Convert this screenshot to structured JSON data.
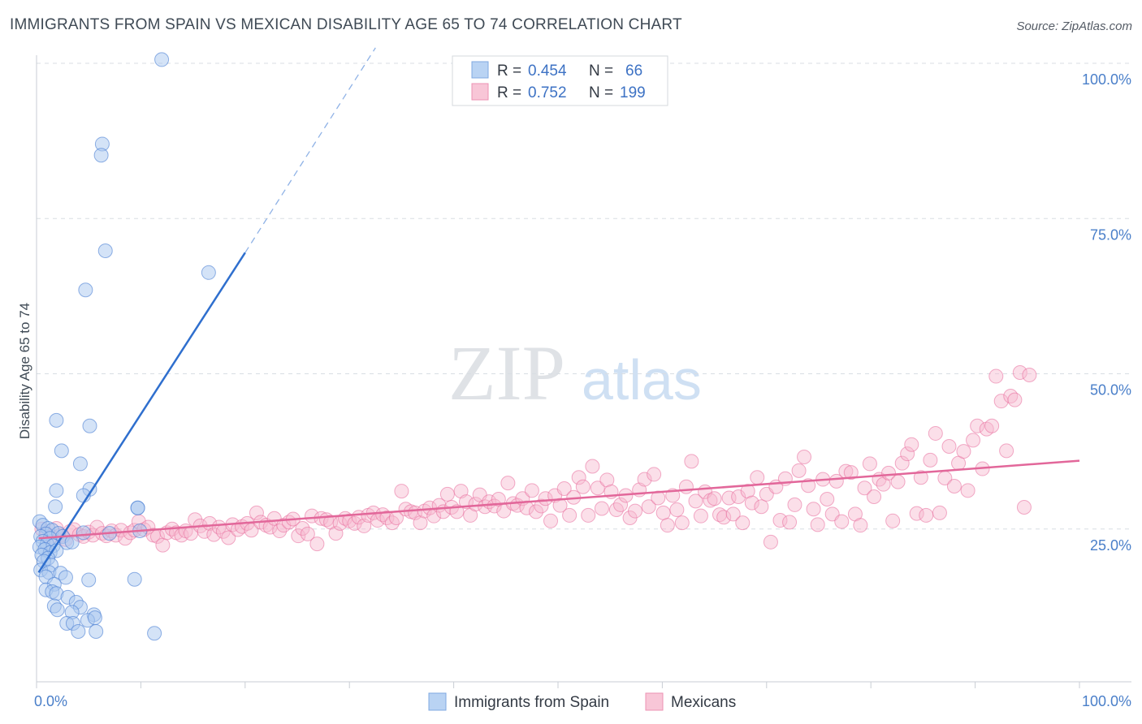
{
  "header": {
    "title": "IMMIGRANTS FROM SPAIN VS MEXICAN DISABILITY AGE 65 TO 74 CORRELATION CHART",
    "source": "Source: ZipAtlas.com"
  },
  "watermark": {
    "zip": "ZIP",
    "atlas": "atlas"
  },
  "colors": {
    "spain": "#4a7fd4",
    "spain_fill": "#a9c8f0",
    "mexicans": "#e8699a",
    "mexicans_fill": "#f6b8cf",
    "tick_label": "#4a7fc9",
    "grid": "#d8dde3"
  },
  "legend": {
    "rows": [
      {
        "r_label": "R =",
        "r_value": "0.454",
        "n_label": "N =",
        "n_value": "66"
      },
      {
        "r_label": "R =",
        "r_value": "0.752",
        "n_label": "N =",
        "n_value": "199"
      }
    ]
  },
  "chart_data": {
    "type": "scatter",
    "title": "IMMIGRANTS FROM SPAIN VS MEXICAN DISABILITY AGE 65 TO 74 CORRELATION CHART",
    "xlabel": "",
    "ylabel": "Disability Age 65 to 74",
    "xlim": [
      0,
      100
    ],
    "ylim": [
      0,
      100
    ],
    "x_tick_labels": [
      "0.0%",
      "100.0%"
    ],
    "y_tick_labels": [
      "25.0%",
      "50.0%",
      "75.0%",
      "100.0%"
    ],
    "y_ticks": [
      25,
      50,
      75,
      100
    ],
    "grid": true,
    "legend_position": "top-center",
    "series": [
      {
        "name": "Immigrants from Spain",
        "r": 0.454,
        "n": 66,
        "trend": {
          "x0": 0.2,
          "y0": 18.0,
          "x1": 20.0,
          "y1": 69.5,
          "dash_to_x": 32.5,
          "dash_to_y": 102.5
        },
        "points": [
          [
            12.0,
            100.6
          ],
          [
            6.3,
            87.0
          ],
          [
            6.2,
            85.2
          ],
          [
            6.6,
            69.8
          ],
          [
            16.5,
            66.3
          ],
          [
            4.7,
            63.5
          ],
          [
            1.9,
            42.5
          ],
          [
            5.1,
            41.6
          ],
          [
            2.4,
            37.6
          ],
          [
            4.2,
            35.5
          ],
          [
            1.9,
            31.2
          ],
          [
            5.1,
            31.4
          ],
          [
            4.5,
            30.4
          ],
          [
            1.8,
            28.6
          ],
          [
            9.7,
            28.4
          ],
          [
            0.3,
            26.2
          ],
          [
            0.6,
            25.6
          ],
          [
            1.1,
            25.1
          ],
          [
            1.5,
            24.8
          ],
          [
            0.9,
            24.2
          ],
          [
            2.1,
            24.3
          ],
          [
            0.4,
            23.8
          ],
          [
            1.3,
            23.5
          ],
          [
            2.5,
            23.8
          ],
          [
            0.6,
            23.0
          ],
          [
            1.0,
            22.6
          ],
          [
            1.6,
            22.3
          ],
          [
            0.3,
            22.1
          ],
          [
            2.9,
            22.8
          ],
          [
            0.8,
            21.7
          ],
          [
            1.3,
            21.2
          ],
          [
            1.9,
            21.5
          ],
          [
            0.5,
            20.8
          ],
          [
            1.1,
            20.3
          ],
          [
            0.7,
            19.8
          ],
          [
            1.4,
            19.2
          ],
          [
            0.4,
            18.4
          ],
          [
            1.2,
            18.0
          ],
          [
            2.3,
            17.9
          ],
          [
            0.9,
            17.3
          ],
          [
            5.0,
            16.8
          ],
          [
            9.4,
            16.9
          ],
          [
            2.8,
            17.2
          ],
          [
            1.7,
            16.1
          ],
          [
            0.9,
            15.2
          ],
          [
            1.5,
            14.9
          ],
          [
            1.9,
            14.6
          ],
          [
            3.0,
            14.0
          ],
          [
            1.7,
            12.6
          ],
          [
            3.8,
            13.2
          ],
          [
            2.0,
            12.0
          ],
          [
            4.2,
            12.4
          ],
          [
            3.4,
            11.6
          ],
          [
            5.5,
            11.2
          ],
          [
            4.9,
            10.3
          ],
          [
            5.6,
            10.7
          ],
          [
            2.9,
            9.8
          ],
          [
            3.5,
            9.8
          ],
          [
            4.0,
            8.5
          ],
          [
            5.7,
            8.5
          ],
          [
            11.3,
            8.2
          ],
          [
            9.9,
            24.7
          ],
          [
            9.7,
            28.4
          ],
          [
            4.5,
            24.4
          ],
          [
            3.4,
            22.9
          ],
          [
            7.0,
            24.3
          ]
        ]
      },
      {
        "name": "Mexicans",
        "r": 0.752,
        "n": 199,
        "trend": {
          "x0": 0.2,
          "y0": 23.5,
          "x1": 100.0,
          "y1": 36.0
        },
        "points": [
          [
            0.5,
            25.0
          ],
          [
            1.0,
            24.2
          ],
          [
            1.4,
            23.8
          ],
          [
            1.9,
            25.1
          ],
          [
            2.3,
            24.0
          ],
          [
            2.8,
            23.3
          ],
          [
            3.2,
            24.6
          ],
          [
            3.6,
            24.9
          ],
          [
            4.1,
            24.1
          ],
          [
            4.5,
            23.8
          ],
          [
            5.0,
            24.5
          ],
          [
            5.4,
            24.0
          ],
          [
            5.8,
            25.3
          ],
          [
            6.3,
            24.3
          ],
          [
            6.7,
            23.9
          ],
          [
            7.2,
            24.7
          ],
          [
            7.6,
            24.0
          ],
          [
            8.1,
            24.8
          ],
          [
            8.5,
            23.5
          ],
          [
            9.0,
            24.4
          ],
          [
            9.4,
            24.8
          ],
          [
            9.8,
            26.2
          ],
          [
            10.3,
            24.9
          ],
          [
            10.7,
            25.3
          ],
          [
            11.2,
            24.0
          ],
          [
            11.6,
            23.8
          ],
          [
            12.1,
            22.4
          ],
          [
            12.5,
            24.4
          ],
          [
            13.0,
            25.0
          ],
          [
            13.4,
            24.4
          ],
          [
            13.9,
            24.0
          ],
          [
            14.3,
            24.7
          ],
          [
            14.8,
            24.3
          ],
          [
            15.2,
            26.5
          ],
          [
            15.7,
            25.5
          ],
          [
            16.1,
            24.6
          ],
          [
            16.6,
            25.9
          ],
          [
            17.0,
            24.1
          ],
          [
            17.5,
            25.3
          ],
          [
            17.9,
            24.6
          ],
          [
            18.4,
            23.6
          ],
          [
            18.8,
            25.7
          ],
          [
            19.3,
            24.9
          ],
          [
            19.7,
            25.4
          ],
          [
            20.2,
            25.9
          ],
          [
            20.6,
            24.8
          ],
          [
            21.1,
            27.6
          ],
          [
            21.5,
            26.1
          ],
          [
            22.0,
            25.6
          ],
          [
            22.4,
            25.3
          ],
          [
            22.8,
            26.7
          ],
          [
            23.3,
            24.7
          ],
          [
            23.7,
            25.6
          ],
          [
            24.2,
            26.1
          ],
          [
            24.6,
            26.6
          ],
          [
            25.1,
            23.9
          ],
          [
            25.5,
            25.1
          ],
          [
            26.0,
            24.2
          ],
          [
            26.4,
            27.1
          ],
          [
            26.9,
            22.6
          ],
          [
            27.3,
            26.7
          ],
          [
            27.8,
            26.5
          ],
          [
            28.2,
            26.1
          ],
          [
            28.7,
            24.3
          ],
          [
            29.1,
            25.9
          ],
          [
            29.6,
            26.7
          ],
          [
            30.0,
            26.3
          ],
          [
            30.5,
            25.9
          ],
          [
            30.9,
            26.9
          ],
          [
            31.4,
            25.5
          ],
          [
            31.8,
            27.2
          ],
          [
            32.3,
            27.6
          ],
          [
            32.7,
            26.4
          ],
          [
            33.2,
            27.3
          ],
          [
            33.6,
            26.8
          ],
          [
            34.1,
            26.0
          ],
          [
            34.5,
            26.8
          ],
          [
            35.0,
            31.1
          ],
          [
            35.4,
            28.2
          ],
          [
            35.9,
            27.8
          ],
          [
            36.3,
            27.6
          ],
          [
            36.8,
            26.0
          ],
          [
            37.2,
            27.9
          ],
          [
            37.7,
            28.4
          ],
          [
            38.1,
            27.1
          ],
          [
            38.6,
            28.8
          ],
          [
            39.0,
            27.8
          ],
          [
            39.4,
            30.6
          ],
          [
            39.8,
            28.5
          ],
          [
            40.3,
            27.8
          ],
          [
            40.7,
            31.1
          ],
          [
            41.2,
            29.4
          ],
          [
            41.6,
            27.2
          ],
          [
            42.1,
            29.0
          ],
          [
            42.5,
            30.5
          ],
          [
            43.0,
            28.6
          ],
          [
            43.4,
            29.4
          ],
          [
            43.9,
            28.7
          ],
          [
            44.3,
            29.8
          ],
          [
            44.8,
            27.9
          ],
          [
            45.2,
            32.4
          ],
          [
            45.7,
            29.1
          ],
          [
            46.1,
            28.8
          ],
          [
            46.6,
            29.9
          ],
          [
            47.0,
            28.4
          ],
          [
            47.5,
            31.2
          ],
          [
            47.9,
            27.8
          ],
          [
            48.4,
            28.7
          ],
          [
            48.8,
            29.9
          ],
          [
            49.3,
            26.3
          ],
          [
            49.7,
            30.4
          ],
          [
            50.2,
            28.8
          ],
          [
            50.6,
            31.5
          ],
          [
            51.1,
            27.2
          ],
          [
            51.5,
            30.1
          ],
          [
            52.0,
            33.3
          ],
          [
            52.4,
            31.8
          ],
          [
            52.9,
            27.2
          ],
          [
            53.3,
            35.1
          ],
          [
            53.8,
            31.6
          ],
          [
            54.2,
            28.3
          ],
          [
            54.7,
            32.9
          ],
          [
            55.1,
            31.0
          ],
          [
            55.6,
            28.1
          ],
          [
            56.0,
            28.9
          ],
          [
            56.5,
            30.4
          ],
          [
            56.9,
            26.8
          ],
          [
            57.4,
            27.9
          ],
          [
            57.8,
            31.3
          ],
          [
            58.3,
            33.0
          ],
          [
            58.7,
            28.6
          ],
          [
            59.2,
            33.8
          ],
          [
            59.6,
            30.0
          ],
          [
            60.1,
            27.6
          ],
          [
            60.5,
            25.6
          ],
          [
            61.0,
            30.4
          ],
          [
            61.4,
            28.1
          ],
          [
            61.9,
            26.0
          ],
          [
            62.3,
            31.8
          ],
          [
            62.8,
            35.9
          ],
          [
            63.2,
            29.5
          ],
          [
            63.7,
            27.1
          ],
          [
            64.1,
            31.0
          ],
          [
            64.6,
            29.6
          ],
          [
            65.0,
            29.9
          ],
          [
            65.5,
            27.3
          ],
          [
            65.9,
            26.9
          ],
          [
            66.4,
            30.0
          ],
          [
            66.8,
            27.4
          ],
          [
            67.3,
            30.2
          ],
          [
            67.7,
            26.0
          ],
          [
            68.2,
            31.1
          ],
          [
            68.6,
            29.2
          ],
          [
            69.1,
            33.3
          ],
          [
            69.5,
            28.6
          ],
          [
            70.0,
            30.6
          ],
          [
            70.4,
            22.9
          ],
          [
            70.9,
            31.8
          ],
          [
            71.3,
            26.4
          ],
          [
            71.8,
            33.1
          ],
          [
            72.2,
            26.1
          ],
          [
            72.7,
            28.9
          ],
          [
            73.1,
            34.4
          ],
          [
            73.6,
            36.6
          ],
          [
            74.0,
            32.0
          ],
          [
            74.5,
            28.2
          ],
          [
            74.9,
            25.7
          ],
          [
            75.4,
            33.0
          ],
          [
            75.8,
            29.8
          ],
          [
            76.3,
            27.4
          ],
          [
            76.7,
            32.7
          ],
          [
            77.2,
            26.2
          ],
          [
            77.6,
            34.3
          ],
          [
            78.1,
            34.1
          ],
          [
            78.5,
            27.4
          ],
          [
            79.0,
            25.6
          ],
          [
            79.4,
            31.6
          ],
          [
            79.9,
            35.5
          ],
          [
            80.3,
            30.2
          ],
          [
            80.8,
            33.0
          ],
          [
            81.2,
            32.2
          ],
          [
            81.7,
            34.0
          ],
          [
            82.1,
            26.3
          ],
          [
            82.6,
            32.6
          ],
          [
            83.0,
            35.6
          ],
          [
            83.5,
            37.1
          ],
          [
            83.9,
            38.6
          ],
          [
            84.4,
            27.5
          ],
          [
            84.8,
            33.3
          ],
          [
            85.3,
            27.2
          ],
          [
            85.7,
            36.1
          ],
          [
            86.2,
            40.4
          ],
          [
            86.6,
            27.6
          ],
          [
            87.1,
            33.2
          ],
          [
            87.5,
            38.3
          ],
          [
            88.0,
            31.9
          ],
          [
            88.4,
            35.6
          ],
          [
            88.9,
            37.5
          ],
          [
            89.3,
            31.2
          ],
          [
            89.8,
            39.3
          ],
          [
            90.2,
            41.6
          ],
          [
            90.7,
            34.7
          ],
          [
            91.1,
            41.1
          ],
          [
            91.6,
            41.6
          ],
          [
            92.0,
            49.6
          ],
          [
            92.5,
            45.6
          ],
          [
            93.0,
            37.6
          ],
          [
            93.4,
            46.4
          ],
          [
            93.8,
            45.8
          ],
          [
            94.3,
            50.2
          ],
          [
            94.7,
            28.5
          ],
          [
            95.2,
            49.8
          ]
        ]
      }
    ]
  },
  "bottom_legend": {
    "items": [
      {
        "label": "Immigrants from Spain"
      },
      {
        "label": "Mexicans"
      }
    ]
  }
}
